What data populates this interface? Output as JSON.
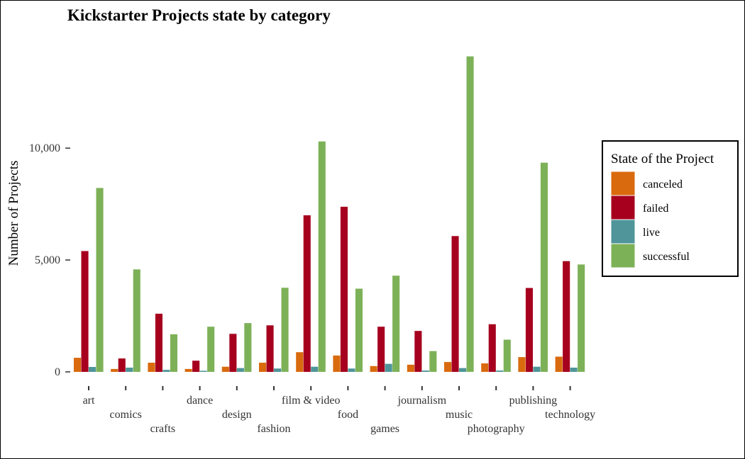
{
  "chart_data": {
    "type": "bar",
    "title": "Kickstarter Projects state by category",
    "xlabel": "",
    "ylabel": "Number of Projects",
    "ylim": [
      0,
      14500
    ],
    "yticks": [
      0,
      5000,
      10000
    ],
    "ytick_labels": [
      "0",
      "5,000",
      "10,000"
    ],
    "grid": false,
    "legend_position": "right",
    "legend_title": "State of the Project",
    "categories": [
      "art",
      "comics",
      "crafts",
      "dance",
      "design",
      "fashion",
      "film & video",
      "food",
      "games",
      "journalism",
      "music",
      "photography",
      "publishing",
      "technology"
    ],
    "series": [
      {
        "name": "canceled",
        "color": "#D96A0D",
        "values": [
          630,
          130,
          410,
          130,
          230,
          410,
          880,
          730,
          260,
          320,
          440,
          380,
          660,
          680
        ]
      },
      {
        "name": "failed",
        "color": "#A6001E",
        "values": [
          5400,
          600,
          2600,
          500,
          1700,
          2080,
          7000,
          7380,
          2020,
          1830,
          6070,
          2130,
          3750,
          4950
        ]
      },
      {
        "name": "live",
        "color": "#4F959A",
        "values": [
          220,
          190,
          90,
          50,
          170,
          150,
          230,
          150,
          360,
          60,
          170,
          60,
          230,
          190
        ]
      },
      {
        "name": "successful",
        "color": "#7DB158",
        "values": [
          8220,
          4580,
          1680,
          2020,
          2180,
          3760,
          10300,
          3720,
          4300,
          930,
          14100,
          1440,
          9350,
          4800
        ]
      }
    ]
  }
}
